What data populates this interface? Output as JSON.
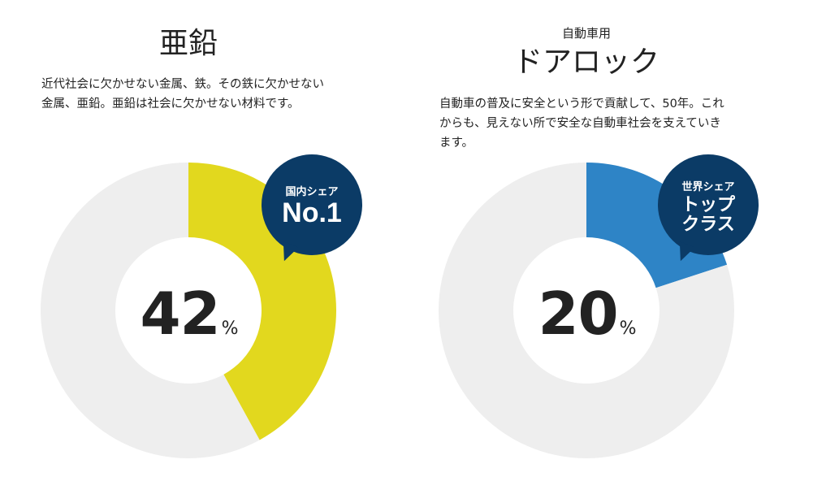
{
  "left": {
    "title": "亜鉛",
    "description": "近代社会に欠かせない金属、鉄。その鉄に欠かせない金属、亜鉛。亜鉛は社会に欠かせない材料です。",
    "percent_value": "42",
    "percent_unit": "%",
    "badge": {
      "line1": "国内シェア",
      "line2": "No.1"
    }
  },
  "right": {
    "subtitle": "自動車用",
    "title": "ドアロック",
    "description": "自動車の普及に安全という形で貢献して、50年。これからも、見えない所で安全な自動車社会を支えていきます。",
    "percent_value": "20",
    "percent_unit": "%",
    "badge": {
      "line1": "世界シェア",
      "line2": "トップ",
      "line3": "クラス"
    }
  },
  "colors": {
    "zinc": "#e2d81e",
    "doorlock": "#2e84c6",
    "remainder": "#eeeeee",
    "badge": "#0b3b66"
  },
  "chart_data": [
    {
      "type": "pie",
      "title": "亜鉛",
      "values": [
        42,
        58
      ],
      "unit": "%",
      "colors": [
        "#e2d81e",
        "#eeeeee"
      ]
    },
    {
      "type": "pie",
      "title": "ドアロック",
      "values": [
        20,
        80
      ],
      "unit": "%",
      "colors": [
        "#2e84c6",
        "#eeeeee"
      ]
    }
  ]
}
